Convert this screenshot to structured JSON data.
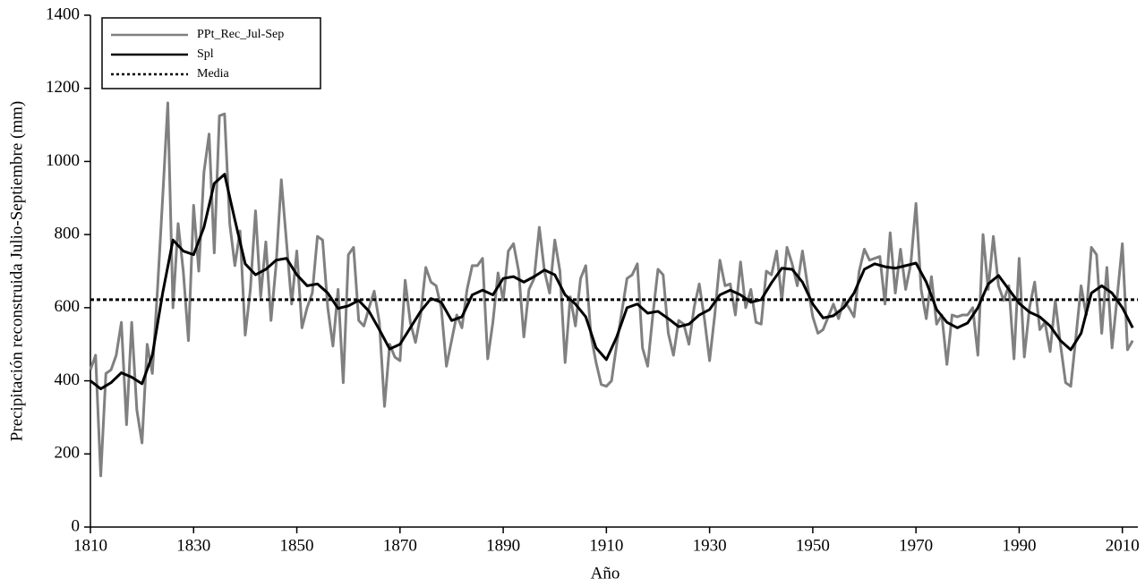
{
  "chart_data": {
    "type": "line",
    "x_label": "Año",
    "y_label": "Precipitación reconstruida Julio-Septiembre (mm)",
    "xlim": [
      1810,
      2013
    ],
    "xticks": [
      1810,
      1830,
      1850,
      1870,
      1890,
      1910,
      1930,
      1950,
      1970,
      1990,
      2010
    ],
    "ylim": [
      0,
      1400
    ],
    "yticks": [
      0,
      200,
      400,
      600,
      800,
      1000,
      1200,
      1400
    ],
    "legend": "top-left",
    "series": [
      {
        "name": "PPt_Rec_Jul-Sep",
        "color": "#808080",
        "style": "solid",
        "x": [
          1810,
          1811,
          1812,
          1813,
          1814,
          1815,
          1816,
          1817,
          1818,
          1819,
          1820,
          1821,
          1822,
          1823,
          1824,
          1825,
          1826,
          1827,
          1828,
          1829,
          1830,
          1831,
          1832,
          1833,
          1834,
          1835,
          1836,
          1837,
          1838,
          1839,
          1840,
          1841,
          1842,
          1843,
          1844,
          1845,
          1846,
          1847,
          1848,
          1849,
          1850,
          1851,
          1852,
          1853,
          1854,
          1855,
          1856,
          1857,
          1858,
          1859,
          1860,
          1861,
          1862,
          1863,
          1864,
          1865,
          1866,
          1867,
          1868,
          1869,
          1870,
          1871,
          1872,
          1873,
          1874,
          1875,
          1876,
          1877,
          1878,
          1879,
          1880,
          1881,
          1882,
          1883,
          1884,
          1885,
          1886,
          1887,
          1888,
          1889,
          1890,
          1891,
          1892,
          1893,
          1894,
          1895,
          1896,
          1897,
          1898,
          1899,
          1900,
          1901,
          1902,
          1903,
          1904,
          1905,
          1906,
          1907,
          1908,
          1909,
          1910,
          1911,
          1912,
          1913,
          1914,
          1915,
          1916,
          1917,
          1918,
          1919,
          1920,
          1921,
          1922,
          1923,
          1924,
          1925,
          1926,
          1927,
          1928,
          1929,
          1930,
          1931,
          1932,
          1933,
          1934,
          1935,
          1936,
          1937,
          1938,
          1939,
          1940,
          1941,
          1942,
          1943,
          1944,
          1945,
          1946,
          1947,
          1948,
          1949,
          1950,
          1951,
          1952,
          1953,
          1954,
          1955,
          1956,
          1957,
          1958,
          1959,
          1960,
          1961,
          1962,
          1963,
          1964,
          1965,
          1966,
          1967,
          1968,
          1969,
          1970,
          1971,
          1972,
          1973,
          1974,
          1975,
          1976,
          1977,
          1978,
          1979,
          1980,
          1981,
          1982,
          1983,
          1984,
          1985,
          1986,
          1987,
          1988,
          1989,
          1990,
          1991,
          1992,
          1993,
          1994,
          1995,
          1996,
          1997,
          1998,
          1999,
          2000,
          2001,
          2002,
          2003,
          2004,
          2005,
          2006,
          2007,
          2008,
          2009,
          2010,
          2011,
          2012
        ],
        "values": [
          430,
          470,
          140,
          420,
          430,
          470,
          560,
          280,
          560,
          320,
          230,
          500,
          420,
          650,
          900,
          1160,
          600,
          830,
          700,
          510,
          880,
          700,
          970,
          1075,
          750,
          1125,
          1130,
          830,
          715,
          810,
          525,
          650,
          865,
          630,
          780,
          565,
          720,
          950,
          780,
          610,
          755,
          545,
          600,
          640,
          795,
          785,
          600,
          495,
          650,
          395,
          745,
          765,
          565,
          550,
          600,
          645,
          560,
          330,
          500,
          465,
          455,
          675,
          560,
          505,
          580,
          710,
          670,
          660,
          600,
          440,
          510,
          580,
          545,
          650,
          715,
          715,
          735,
          460,
          560,
          695,
          620,
          755,
          775,
          700,
          520,
          650,
          680,
          820,
          700,
          640,
          785,
          700,
          450,
          630,
          550,
          680,
          715,
          525,
          450,
          390,
          385,
          400,
          500,
          590,
          680,
          690,
          720,
          490,
          440,
          580,
          705,
          690,
          530,
          470,
          565,
          555,
          500,
          600,
          665,
          570,
          455,
          580,
          730,
          660,
          665,
          580,
          725,
          600,
          650,
          560,
          555,
          700,
          690,
          755,
          620,
          765,
          720,
          660,
          755,
          660,
          575,
          530,
          540,
          575,
          610,
          570,
          620,
          600,
          575,
          700,
          760,
          730,
          735,
          740,
          610,
          805,
          640,
          760,
          650,
          720,
          885,
          650,
          570,
          685,
          555,
          580,
          445,
          580,
          575,
          580,
          580,
          600,
          470,
          800,
          650,
          795,
          660,
          620,
          660,
          460,
          735,
          465,
          600,
          670,
          540,
          560,
          480,
          620,
          500,
          395,
          385,
          520,
          660,
          580,
          765,
          745,
          530,
          710,
          490,
          630,
          775,
          485,
          510
        ]
      },
      {
        "name": "Spl",
        "color": "#000000",
        "style": "solid",
        "x": [
          1810,
          1812,
          1814,
          1816,
          1818,
          1820,
          1822,
          1824,
          1826,
          1828,
          1830,
          1832,
          1834,
          1836,
          1838,
          1840,
          1842,
          1844,
          1846,
          1848,
          1850,
          1852,
          1854,
          1856,
          1858,
          1860,
          1862,
          1864,
          1866,
          1868,
          1870,
          1872,
          1874,
          1876,
          1878,
          1880,
          1882,
          1884,
          1886,
          1888,
          1890,
          1892,
          1894,
          1896,
          1898,
          1900,
          1902,
          1904,
          1906,
          1908,
          1910,
          1912,
          1914,
          1916,
          1918,
          1920,
          1922,
          1924,
          1926,
          1928,
          1930,
          1932,
          1934,
          1936,
          1938,
          1940,
          1942,
          1944,
          1946,
          1948,
          1950,
          1952,
          1954,
          1956,
          1958,
          1960,
          1962,
          1964,
          1966,
          1968,
          1970,
          1972,
          1974,
          1976,
          1978,
          1980,
          1982,
          1984,
          1986,
          1988,
          1990,
          1992,
          1994,
          1996,
          1998,
          2000,
          2002,
          2004,
          2006,
          2008,
          2010,
          2012
        ],
        "values": [
          400,
          378,
          395,
          422,
          410,
          392,
          470,
          640,
          785,
          755,
          745,
          820,
          940,
          965,
          840,
          720,
          690,
          705,
          730,
          735,
          690,
          660,
          665,
          640,
          598,
          605,
          620,
          590,
          540,
          487,
          500,
          545,
          590,
          625,
          615,
          565,
          575,
          635,
          648,
          635,
          680,
          685,
          670,
          685,
          703,
          690,
          635,
          610,
          575,
          490,
          458,
          520,
          600,
          610,
          585,
          590,
          570,
          548,
          555,
          580,
          595,
          635,
          648,
          635,
          615,
          622,
          668,
          708,
          705,
          670,
          610,
          572,
          578,
          600,
          640,
          705,
          720,
          712,
          708,
          715,
          722,
          670,
          595,
          560,
          545,
          558,
          600,
          665,
          688,
          650,
          612,
          588,
          575,
          550,
          510,
          485,
          530,
          640,
          660,
          640,
          600,
          545
        ]
      },
      {
        "name": "Media",
        "color": "#000000",
        "style": "dotted",
        "x": [
          1810,
          2013
        ],
        "values": [
          622,
          622
        ]
      }
    ]
  }
}
